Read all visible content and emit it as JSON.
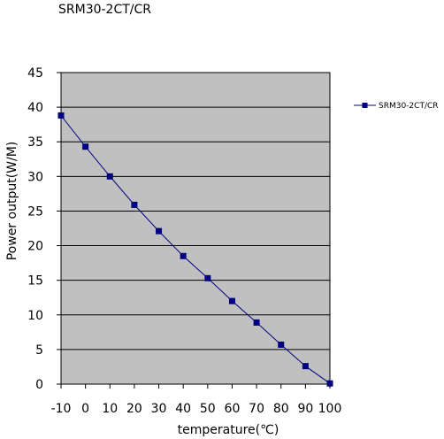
{
  "chart_data": {
    "type": "line",
    "title": "SRM30-2CT/CR",
    "xlabel": "temperature(℃)",
    "ylabel": "Power output(W/M)",
    "categories": [
      "-10",
      "0",
      "10",
      "20",
      "30",
      "40",
      "50",
      "60",
      "70",
      "80",
      "90",
      "100"
    ],
    "x": [
      -10,
      0,
      10,
      20,
      30,
      40,
      50,
      60,
      70,
      80,
      90,
      100
    ],
    "series": [
      {
        "name": "SRM30-2CT/CR",
        "values": [
          38.8,
          34.3,
          30.0,
          25.9,
          22.1,
          18.5,
          15.3,
          12.0,
          8.9,
          5.7,
          2.6,
          0.1
        ]
      }
    ],
    "ylim": [
      0,
      45
    ],
    "yticks": [
      0,
      5,
      10,
      15,
      20,
      25,
      30,
      35,
      40,
      45
    ],
    "grid": true,
    "legend": "right",
    "colors": {
      "plot_background": "#c0c0c0",
      "series": "#000080",
      "grid": "#000000"
    }
  }
}
